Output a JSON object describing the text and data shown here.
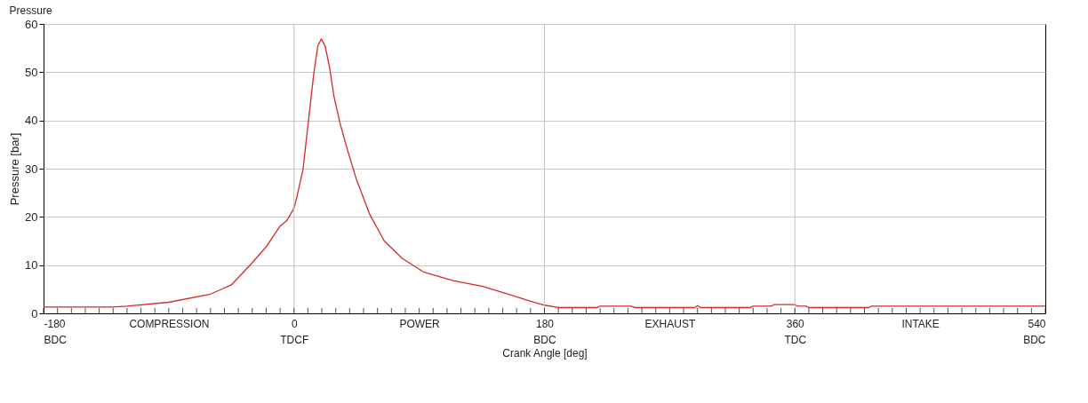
{
  "chart_data": {
    "type": "line",
    "title": "Pressure",
    "xlabel": "Crank Angle [deg]",
    "ylabel": "Pressure [bar]",
    "series": [
      {
        "color": "#d42a2a",
        "x": [
          -180,
          -130,
          -120,
          -90,
          -60,
          -45,
          -30,
          -20,
          -10,
          -5,
          0,
          2.1,
          6.4,
          10.7,
          14.3,
          17.1,
          19.6,
          22.4,
          25.5,
          28.7,
          33,
          38.3,
          44.7,
          54.3,
          64.9,
          77.7,
          93,
          114.3,
          135.6,
          157,
          170,
          180,
          190,
          218,
          220,
          242,
          245,
          288,
          290,
          292,
          328,
          330,
          343,
          345,
          360,
          362,
          368,
          370,
          413,
          415,
          540
        ],
        "values": [
          1.3,
          1.3,
          1.5,
          2.3,
          4.0,
          5.9,
          10.5,
          13.8,
          18.1,
          19.3,
          21.8,
          24.2,
          29.7,
          40.7,
          49.9,
          55.4,
          56.9,
          55.4,
          51.1,
          45.0,
          39.5,
          34.0,
          27.9,
          20.6,
          15.0,
          11.4,
          8.6,
          6.8,
          5.6,
          3.7,
          2.5,
          1.7,
          1.2,
          1.2,
          1.5,
          1.5,
          1.2,
          1.2,
          1.6,
          1.2,
          1.2,
          1.5,
          1.5,
          1.8,
          1.8,
          1.5,
          1.5,
          1.2,
          1.2,
          1.5,
          1.5
        ]
      }
    ],
    "xlim": [
      -180,
      540
    ],
    "ylim": [
      0,
      60
    ],
    "xticks": [
      {
        "value": -180,
        "label": "-180\nBDC"
      },
      {
        "value": -170,
        "label": null
      },
      {
        "value": -160,
        "label": null
      },
      {
        "value": -150,
        "label": null
      },
      {
        "value": -140,
        "label": null
      },
      {
        "value": -130,
        "label": null
      },
      {
        "value": -120,
        "label": null
      },
      {
        "value": -110,
        "label": null
      },
      {
        "value": -100,
        "label": null
      },
      {
        "value": -90,
        "label": "COMPRESSION"
      },
      {
        "value": -80,
        "label": null
      },
      {
        "value": -70,
        "label": null
      },
      {
        "value": -60,
        "label": null
      },
      {
        "value": -50,
        "label": null
      },
      {
        "value": -40,
        "label": null
      },
      {
        "value": -30,
        "label": null
      },
      {
        "value": -20,
        "label": null
      },
      {
        "value": -10,
        "label": null
      },
      {
        "value": 0,
        "label": "0\nTDCF"
      },
      {
        "value": 10,
        "label": null
      },
      {
        "value": 20,
        "label": null
      },
      {
        "value": 30,
        "label": null
      },
      {
        "value": 40,
        "label": null
      },
      {
        "value": 50,
        "label": null
      },
      {
        "value": 60,
        "label": null
      },
      {
        "value": 70,
        "label": null
      },
      {
        "value": 80,
        "label": null
      },
      {
        "value": 90,
        "label": "POWER"
      },
      {
        "value": 100,
        "label": null
      },
      {
        "value": 110,
        "label": null
      },
      {
        "value": 120,
        "label": null
      },
      {
        "value": 130,
        "label": null
      },
      {
        "value": 140,
        "label": null
      },
      {
        "value": 150,
        "label": null
      },
      {
        "value": 160,
        "label": null
      },
      {
        "value": 170,
        "label": null
      },
      {
        "value": 180,
        "label": "180\nBDC"
      },
      {
        "value": 190,
        "label": null
      },
      {
        "value": 200,
        "label": null
      },
      {
        "value": 210,
        "label": null
      },
      {
        "value": 220,
        "label": null
      },
      {
        "value": 230,
        "label": null
      },
      {
        "value": 240,
        "label": null
      },
      {
        "value": 250,
        "label": null
      },
      {
        "value": 260,
        "label": null
      },
      {
        "value": 270,
        "label": "EXHAUST"
      },
      {
        "value": 280,
        "label": null
      },
      {
        "value": 290,
        "label": null
      },
      {
        "value": 300,
        "label": null
      },
      {
        "value": 310,
        "label": null
      },
      {
        "value": 320,
        "label": null
      },
      {
        "value": 330,
        "label": null
      },
      {
        "value": 340,
        "label": null
      },
      {
        "value": 350,
        "label": null
      },
      {
        "value": 360,
        "label": "360\nTDC"
      },
      {
        "value": 370,
        "label": null
      },
      {
        "value": 380,
        "label": null
      },
      {
        "value": 390,
        "label": null
      },
      {
        "value": 400,
        "label": null
      },
      {
        "value": 410,
        "label": null
      },
      {
        "value": 420,
        "label": null
      },
      {
        "value": 430,
        "label": null
      },
      {
        "value": 440,
        "label": null
      },
      {
        "value": 450,
        "label": "INTAKE"
      },
      {
        "value": 460,
        "label": null
      },
      {
        "value": 470,
        "label": null
      },
      {
        "value": 480,
        "label": null
      },
      {
        "value": 490,
        "label": null
      },
      {
        "value": 500,
        "label": null
      },
      {
        "value": 510,
        "label": null
      },
      {
        "value": 520,
        "label": null
      },
      {
        "value": 530,
        "label": null
      },
      {
        "value": 540,
        "label": "540\nBDC"
      }
    ],
    "yticks": [
      0,
      10,
      20,
      30,
      40,
      50,
      60
    ],
    "grid": "y",
    "ref_lines": [
      {
        "axis": "x",
        "value": 0,
        "color": "#c0c0c0"
      },
      {
        "axis": "x",
        "value": 180,
        "color": "#c0c0c0"
      },
      {
        "axis": "x",
        "value": 360,
        "color": "#c0c0c0"
      }
    ],
    "marker": "none",
    "line_style": "solid"
  }
}
